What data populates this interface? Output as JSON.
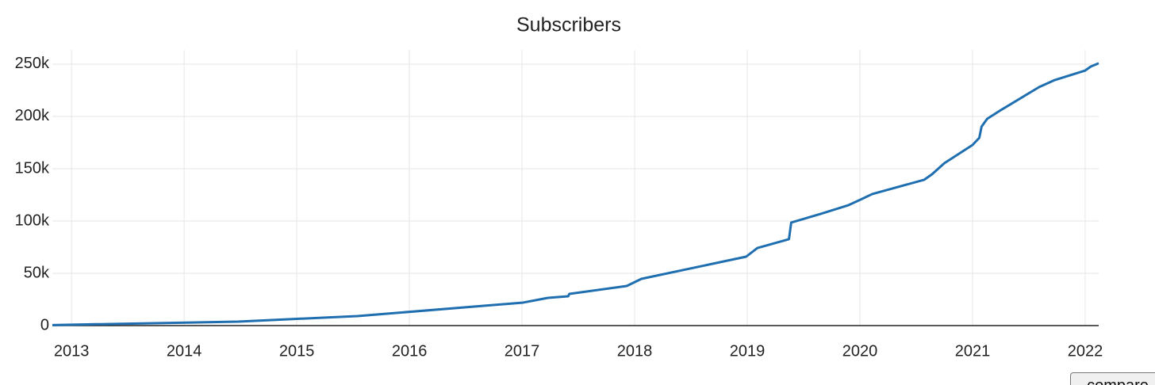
{
  "chart_data": {
    "type": "line",
    "title": "Subscribers",
    "x": [
      2012.83,
      2014.48,
      2015.54,
      2017.01,
      2017.23,
      2017.41,
      2017.42,
      2017.93,
      2018.06,
      2018.99,
      2019.09,
      2019.37,
      2019.39,
      2019.65,
      2019.9,
      2020.02,
      2020.11,
      2020.57,
      2020.64,
      2020.75,
      2021.0,
      2021.06,
      2021.08,
      2021.13,
      2021.24,
      2021.59,
      2021.73,
      2022.0,
      2022.05,
      2022.12
    ],
    "values": [
      500,
      3800,
      9100,
      22000,
      26500,
      28000,
      30300,
      37900,
      44700,
      65900,
      74200,
      82600,
      98500,
      106800,
      115200,
      121200,
      125800,
      139400,
      144700,
      155300,
      172700,
      179500,
      190200,
      197700,
      205300,
      228000,
      234800,
      243900,
      247700,
      250800
    ],
    "color": "#1f6fb0",
    "xlim": [
      2012.83,
      2022.12
    ],
    "xticks": [
      2013,
      2014,
      2015,
      2016,
      2017,
      2018,
      2019,
      2020,
      2021,
      2022
    ],
    "ylim": [
      0,
      263600
    ],
    "yticks": [
      0,
      {
        "value": 50000,
        "label": "50k"
      },
      {
        "value": 100000,
        "label": "100k"
      },
      {
        "value": 150000,
        "label": "150k"
      },
      {
        "value": 200000,
        "label": "200k"
      },
      {
        "value": 250000,
        "label": "250k"
      }
    ],
    "grid": true
  },
  "controls": {
    "compare_button": "compare"
  }
}
